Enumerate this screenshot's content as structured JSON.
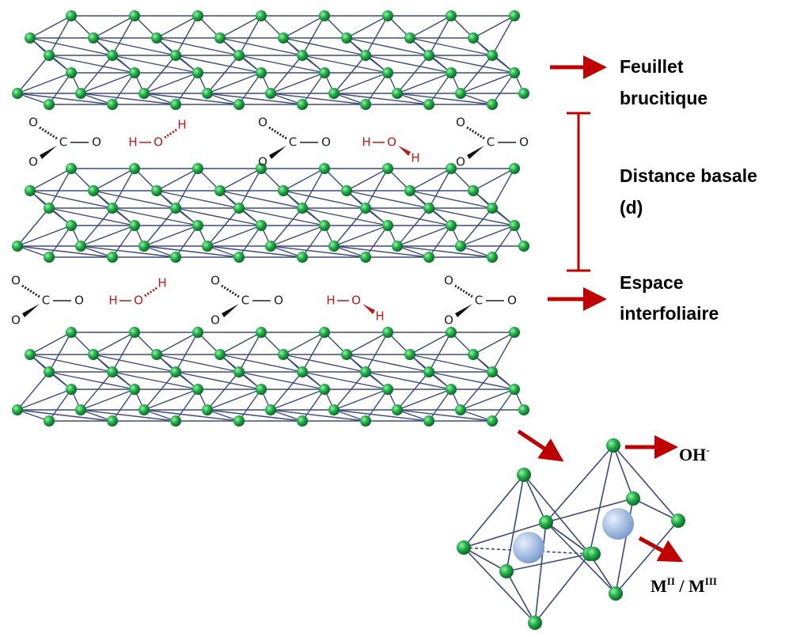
{
  "labels": {
    "sheet": [
      "Feuillet",
      "brucitique"
    ],
    "basal": [
      "Distance basale",
      "(d)"
    ],
    "interlayer": [
      "Espace",
      "interfoliaire"
    ],
    "hydroxide": {
      "base": "OH",
      "sup": "-"
    },
    "metal": [
      {
        "text": "M"
      },
      {
        "sup": "II"
      },
      {
        "text": " / M"
      },
      {
        "sup": "III"
      }
    ]
  },
  "interlayers": [
    [
      [
        "O",
        "C",
        "O",
        "O"
      ],
      [
        "H",
        "O",
        "H"
      ],
      [
        "O",
        "C",
        "O",
        "O"
      ],
      [
        "H",
        "O",
        "H"
      ],
      [
        "O",
        "C",
        "O",
        "O"
      ]
    ],
    [
      [
        "O",
        "C",
        "O",
        "O"
      ],
      [
        "H",
        "O",
        "H"
      ],
      [
        "O",
        "C",
        "O",
        "O"
      ],
      [
        "H",
        "O",
        "H"
      ],
      [
        "O",
        "C",
        "O",
        "O"
      ]
    ]
  ]
}
